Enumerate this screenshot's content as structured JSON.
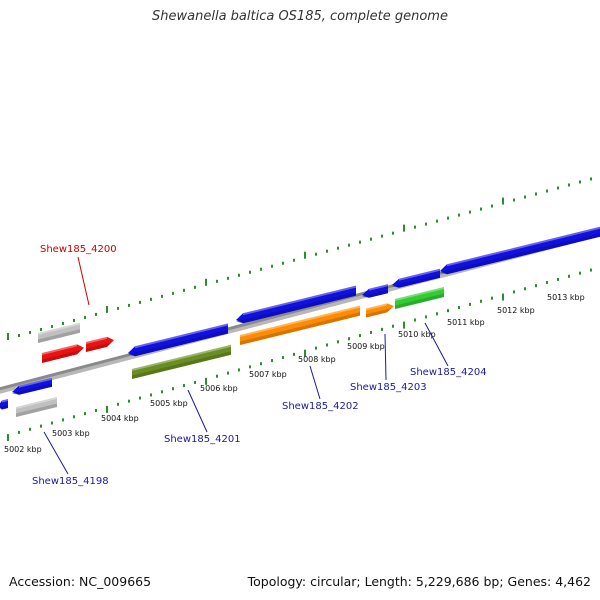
{
  "title": "Shewanella baltica OS185, complete genome",
  "footer": {
    "accession": "Accession: NC_009665",
    "summary": "Topology: circular; Length: 5,229,686 bp; Genes: 4,462"
  },
  "colors": {
    "backbone": "#8a8a8a",
    "scale_ticks": "#2e8b2e",
    "label_red": "#cc0000",
    "label_blue": "#1a1aa0"
  },
  "tick_labels": [
    "5002 kbp",
    "5003 kbp",
    "5004 kbp",
    "5005 kbp",
    "5006 kbp",
    "5007 kbp",
    "5008 kbp",
    "5009 kbp",
    "5010 kbp",
    "5011 kbp",
    "5012 kbp",
    "5013 kbp"
  ],
  "gene_labels": [
    {
      "text": "Shew185_4200",
      "color": "red"
    },
    {
      "text": "Shew185_4198",
      "color": "blue"
    },
    {
      "text": "Shew185_4201",
      "color": "blue"
    },
    {
      "text": "Shew185_4202",
      "color": "blue"
    },
    {
      "text": "Shew185_4203",
      "color": "blue"
    },
    {
      "text": "Shew185_4204",
      "color": "blue"
    }
  ],
  "features": [
    {
      "name": "feature-blue-1",
      "color": "#1010e0"
    },
    {
      "name": "feature-gray-1",
      "color": "#c0c0c0"
    },
    {
      "name": "feature-gray-2",
      "color": "#c0c0c0"
    },
    {
      "name": "feature-red-1",
      "color": "#ee1111"
    },
    {
      "name": "feature-red-2",
      "color": "#ee1111"
    },
    {
      "name": "feature-blue-2",
      "color": "#1010e0"
    },
    {
      "name": "feature-olive-1",
      "color": "#6b8e23"
    },
    {
      "name": "feature-blue-3",
      "color": "#1010e0"
    },
    {
      "name": "feature-orange-1",
      "color": "#ff8c00"
    },
    {
      "name": "feature-blue-4",
      "color": "#1010e0"
    },
    {
      "name": "feature-orange-2",
      "color": "#ff8c00"
    },
    {
      "name": "feature-blue-5",
      "color": "#1010e0"
    },
    {
      "name": "feature-green-1",
      "color": "#33cc33"
    },
    {
      "name": "feature-blue-6",
      "color": "#1010e0"
    }
  ]
}
